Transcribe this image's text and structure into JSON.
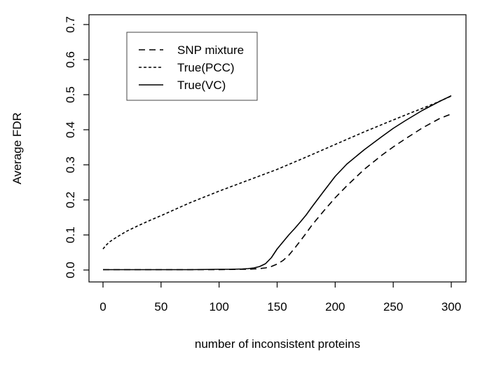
{
  "chart_data": {
    "type": "line",
    "title": "",
    "xlabel": "number of inconsistent proteins",
    "ylabel": "Average FDR",
    "xlim": [
      0,
      300
    ],
    "ylim": [
      0,
      0.7
    ],
    "xticks": [
      0,
      50,
      100,
      150,
      200,
      250,
      300
    ],
    "yticks": [
      "0.0",
      "0.1",
      "0.2",
      "0.3",
      "0.4",
      "0.5",
      "0.6",
      "0.7"
    ],
    "grid": false,
    "line_color": "#000000",
    "background_color": "#ffffff",
    "legend_position": "top-left-inside",
    "legend_order": [
      "SNP mixture",
      "True(PCC)",
      "True(VC)"
    ],
    "series": [
      {
        "name": "SNP mixture",
        "style": "long-dash",
        "x": [
          0,
          25,
          50,
          75,
          100,
          115,
          125,
          130,
          135,
          140,
          145,
          150,
          155,
          160,
          165,
          170,
          175,
          180,
          190,
          200,
          210,
          225,
          240,
          250,
          260,
          275,
          290,
          300
        ],
        "y": [
          0.001,
          0.001,
          0.001,
          0.001,
          0.001,
          0.002,
          0.002,
          0.003,
          0.004,
          0.006,
          0.01,
          0.017,
          0.027,
          0.042,
          0.062,
          0.083,
          0.105,
          0.128,
          0.168,
          0.206,
          0.24,
          0.287,
          0.327,
          0.351,
          0.373,
          0.405,
          0.432,
          0.445
        ]
      },
      {
        "name": "True(PCC)",
        "style": "short-dash",
        "x": [
          0,
          3,
          6,
          10,
          15,
          20,
          30,
          40,
          50,
          75,
          100,
          125,
          150,
          175,
          200,
          225,
          250,
          265,
          275,
          285,
          300
        ],
        "y": [
          0.06,
          0.072,
          0.081,
          0.09,
          0.1,
          0.11,
          0.126,
          0.141,
          0.155,
          0.192,
          0.225,
          0.256,
          0.287,
          0.322,
          0.358,
          0.394,
          0.428,
          0.448,
          0.461,
          0.474,
          0.496
        ]
      },
      {
        "name": "True(VC)",
        "style": "solid",
        "x": [
          0,
          25,
          50,
          75,
          100,
          110,
          120,
          125,
          130,
          135,
          140,
          145,
          150,
          155,
          160,
          165,
          170,
          175,
          180,
          190,
          200,
          210,
          225,
          240,
          250,
          260,
          275,
          290,
          300
        ],
        "y": [
          0.001,
          0.001,
          0.001,
          0.001,
          0.002,
          0.002,
          0.003,
          0.004,
          0.006,
          0.01,
          0.018,
          0.035,
          0.06,
          0.08,
          0.1,
          0.118,
          0.137,
          0.157,
          0.18,
          0.224,
          0.267,
          0.302,
          0.343,
          0.38,
          0.404,
          0.425,
          0.455,
          0.481,
          0.497
        ]
      }
    ]
  }
}
